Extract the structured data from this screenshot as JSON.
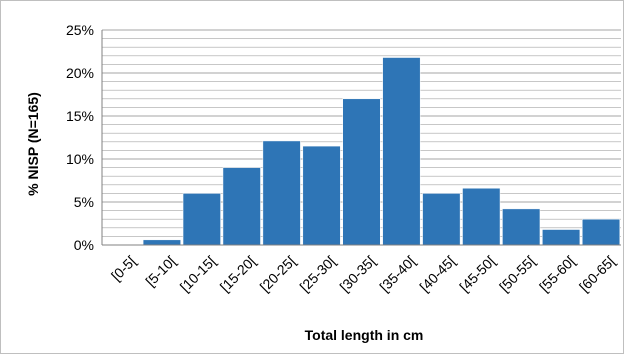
{
  "chart_data": {
    "type": "bar",
    "title": "",
    "xlabel": "Total length in cm",
    "ylabel": "% NISP (N=165)",
    "categories": [
      "[0-5[",
      "[5-10[",
      "[10-15[",
      "[15-20[",
      "[20-25[",
      "[25-30[",
      "[30-35[",
      "[35-40[",
      "[40-45[",
      "[45-50[",
      "[50-55[",
      "[55-60[",
      "[60-65["
    ],
    "values": [
      0,
      0.6,
      6.0,
      9.0,
      12.1,
      11.5,
      17.0,
      21.8,
      6.0,
      6.6,
      4.2,
      1.8,
      3.0
    ],
    "yticks": [
      "0%",
      "5%",
      "10%",
      "15%",
      "20%",
      "25%"
    ],
    "ylim": [
      0,
      25
    ],
    "grid": true,
    "legend": "none",
    "colors": {
      "bar": "#2e75b6",
      "bar_edge": "#ffffff",
      "grid": "#a6a6a6",
      "axis": "#808080"
    }
  }
}
